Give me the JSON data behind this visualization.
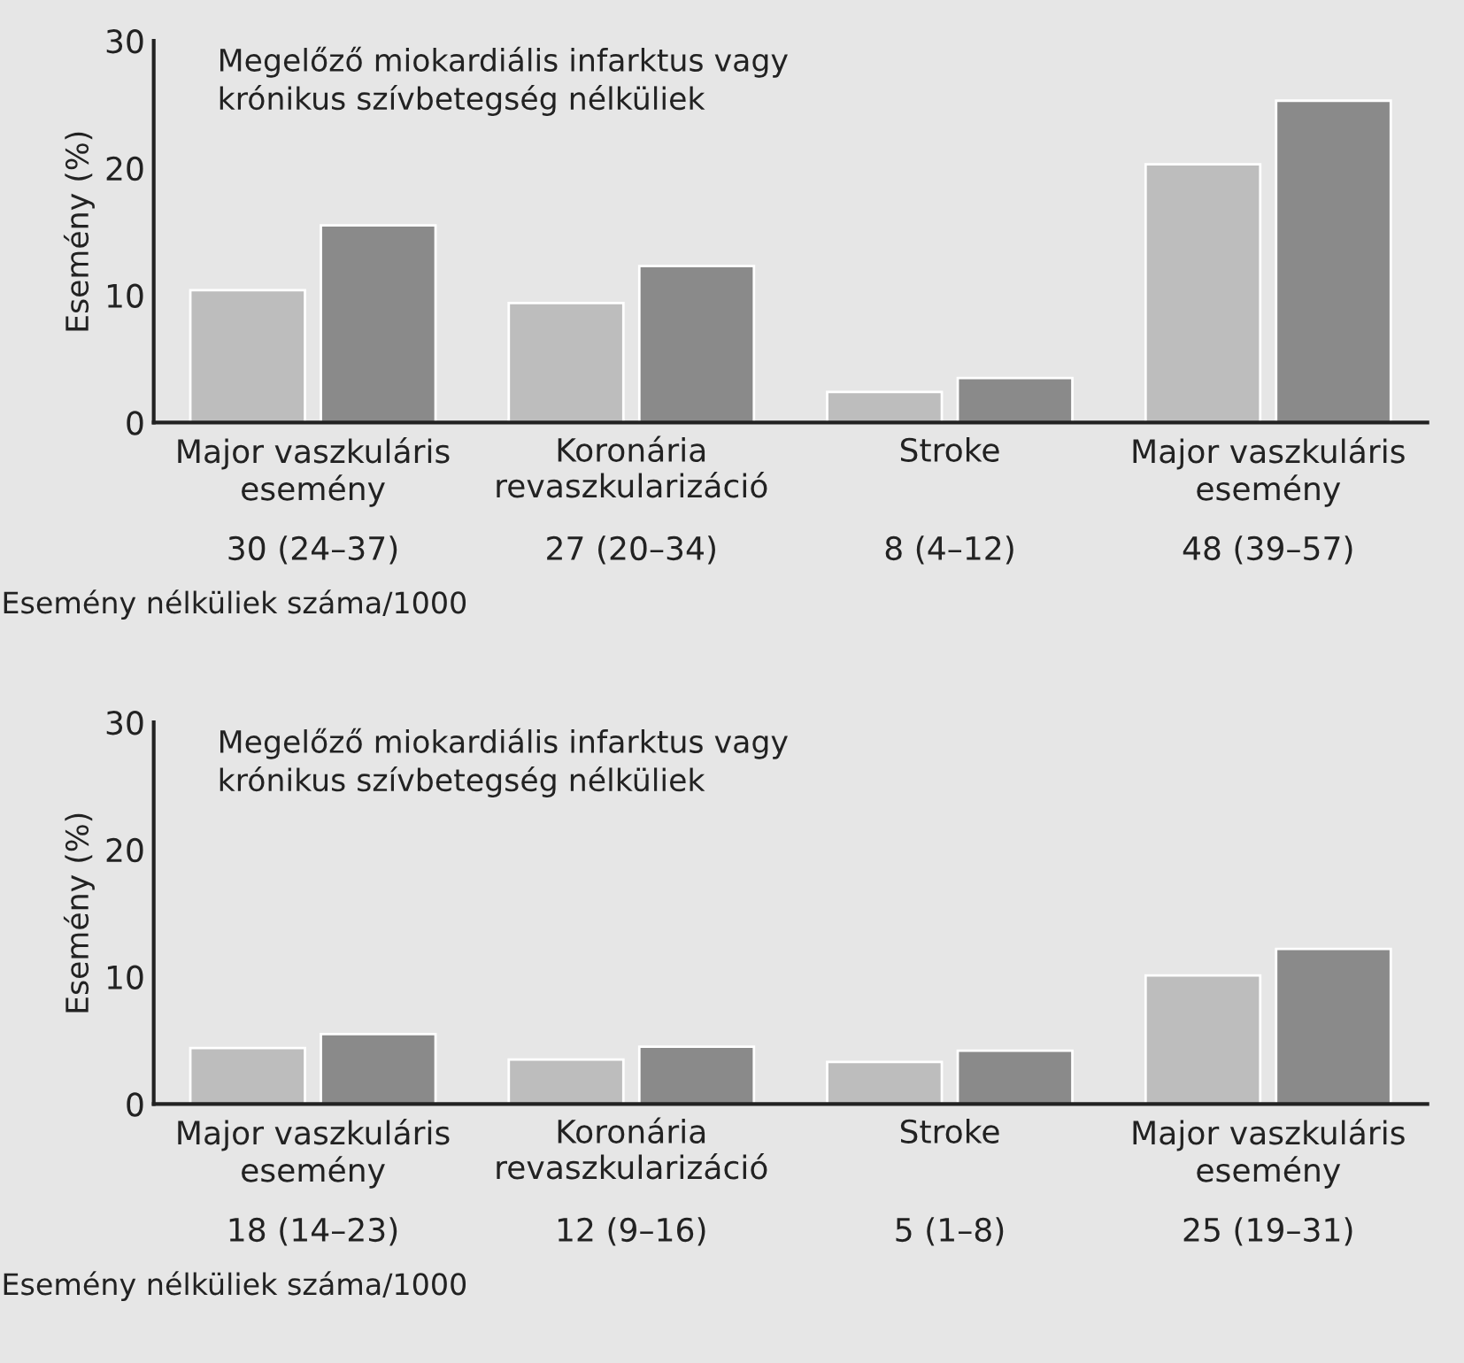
{
  "chart_data": [
    {
      "type": "bar",
      "title": "Megelőző miokardiális infarktus vagy\nkrónikus szívbetegség nélküliek",
      "ylabel": "Esemény (%)",
      "categories": [
        "Major vaszkuláris\nesemény",
        "Koronária\nrevaszkularizáció",
        "Stroke",
        "Major vaszkuláris\nesemény"
      ],
      "series": [
        {
          "color": "#bdbdbd",
          "values": [
            10.4,
            9.4,
            2.4,
            20.3
          ]
        },
        {
          "color": "#8a8a8a",
          "values": [
            15.5,
            12.3,
            3.5,
            25.3
          ]
        }
      ],
      "ylim": [
        0,
        30
      ],
      "yticks": [
        0,
        10,
        20,
        30
      ],
      "grid": false,
      "annotations": [
        "30 (24–37)",
        "27 (20–34)",
        "8 (4–12)",
        "48 (39–57)",
        "Esemény nélküliek száma/1000"
      ]
    },
    {
      "type": "bar",
      "title": "Megelőző miokardiális infarktus vagy\nkrónikus szívbetegség nélküliek",
      "ylabel": "Esemény (%)",
      "categories": [
        "Major vaszkuláris\nesemény",
        "Koronária\nrevaszkularizáció",
        "Stroke",
        "Major vaszkuláris\nesemény"
      ],
      "series": [
        {
          "color": "#bdbdbd",
          "values": [
            4.4,
            3.5,
            3.3,
            10.1
          ]
        },
        {
          "color": "#8a8a8a",
          "values": [
            5.5,
            4.5,
            4.2,
            12.2
          ]
        }
      ],
      "ylim": [
        0,
        30
      ],
      "yticks": [
        0,
        10,
        20,
        30
      ],
      "grid": false,
      "annotations": [
        "18 (14–23)",
        "12 (9–16)",
        "5 (1–8)",
        "25 (19–31)",
        "Esemény nélküliek száma/1000"
      ]
    }
  ]
}
